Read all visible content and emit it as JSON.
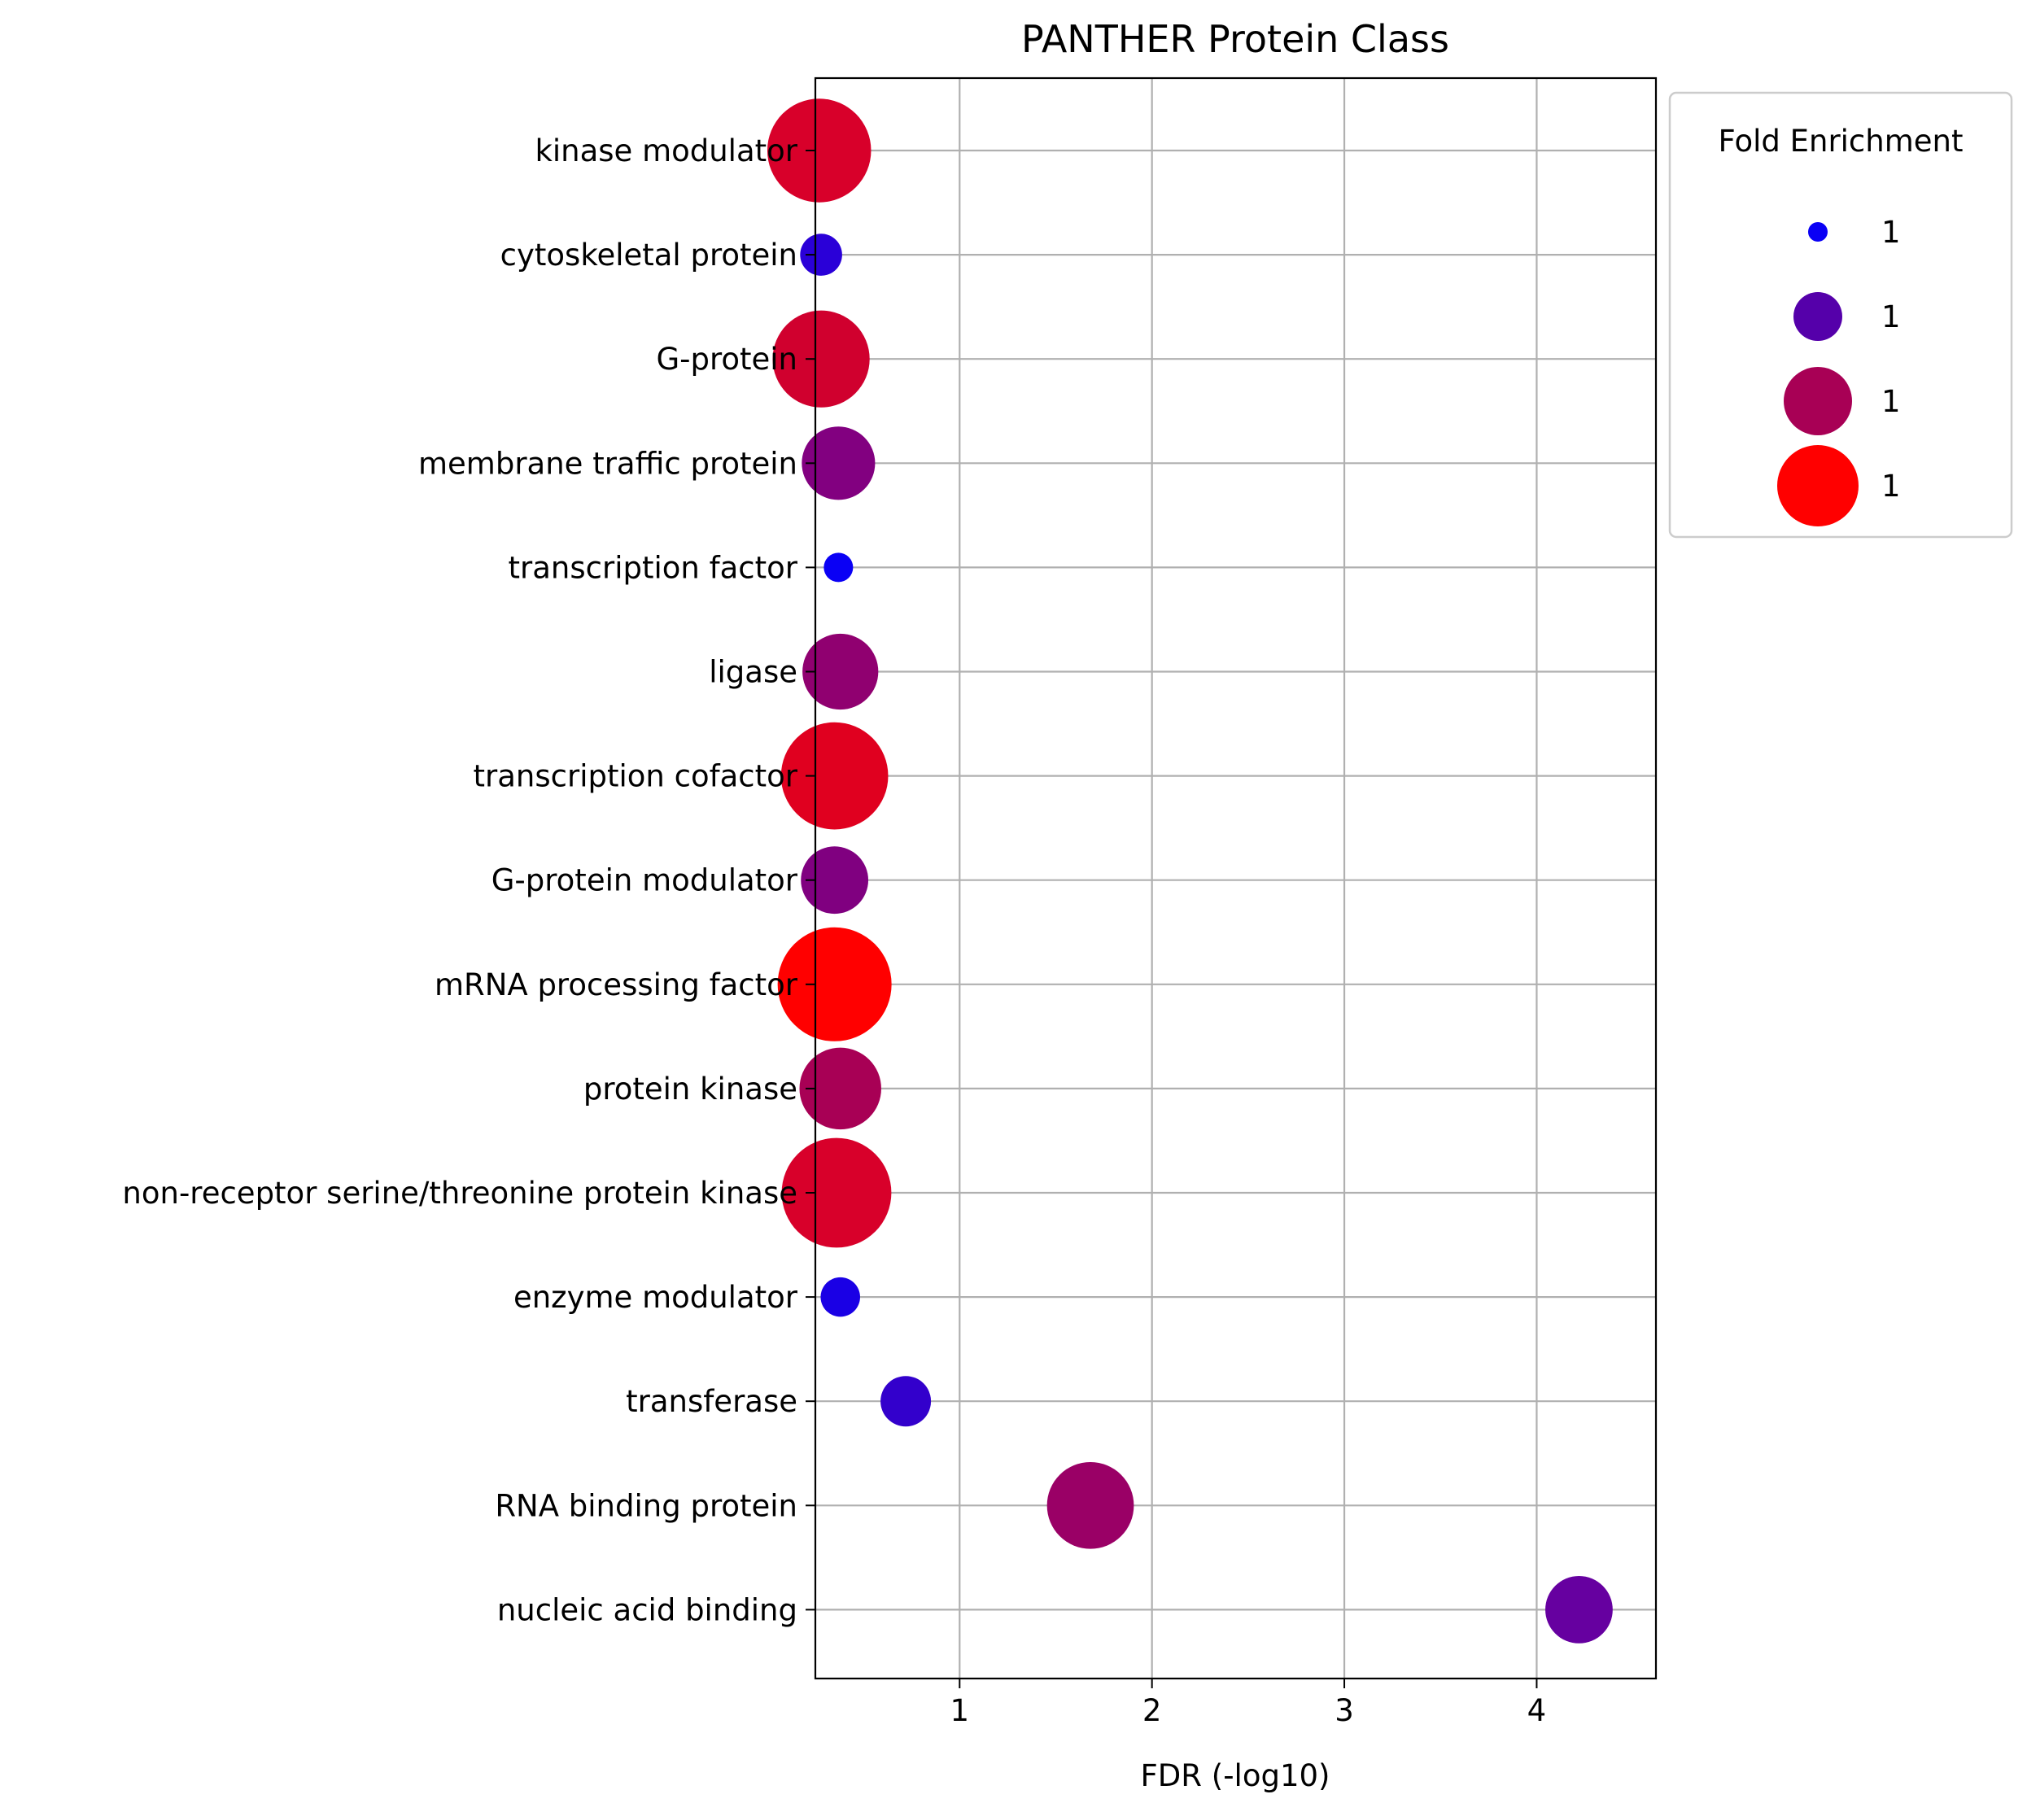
{
  "chart_data": {
    "type": "scatter",
    "title": "PANTHER Protein Class",
    "xlabel": "FDR (-log10)",
    "ylabel": "",
    "xlim": [
      0.25,
      4.62
    ],
    "xticks": [
      1,
      2,
      3,
      4
    ],
    "grid": true,
    "legend": {
      "title": "Fold Enrichment",
      "placement": "outside-top-right",
      "entries": [
        {
          "label": "1",
          "color": "#0a00f5",
          "size_rank": 1
        },
        {
          "label": "1",
          "color": "#5500aa",
          "size_rank": 2
        },
        {
          "label": "1",
          "color": "#a80055",
          "size_rank": 3
        },
        {
          "label": "1",
          "color": "#ff0000",
          "size_rank": 4
        }
      ]
    },
    "categories": [
      "kinase modulator",
      "cytoskeletal protein",
      "G-protein",
      "membrane traffic protein",
      "transcription factor",
      "ligase",
      "transcription cofactor",
      "G-protein modulator",
      "mRNA processing factor",
      "protein kinase",
      "non-receptor serine/threonine protein kinase",
      "enzyme modulator",
      "transferase",
      "RNA binding protein",
      "nucleic acid binding"
    ],
    "points": [
      {
        "category": "kinase modulator",
        "fdr_log10": 0.27,
        "fold_enrichment": 0.88,
        "color": "#d8002a"
      },
      {
        "category": "cytoskeletal protein",
        "fdr_log10": 0.28,
        "fold_enrichment": 0.15,
        "color": "#2a00d8"
      },
      {
        "category": "G-protein",
        "fdr_log10": 0.28,
        "fold_enrichment": 0.8,
        "color": "#d0002e"
      },
      {
        "category": "membrane traffic protein",
        "fdr_log10": 0.37,
        "fold_enrichment": 0.52,
        "color": "#820080"
      },
      {
        "category": "transcription factor",
        "fdr_log10": 0.37,
        "fold_enrichment": 0.0,
        "color": "#0a00f5"
      },
      {
        "category": "ligase",
        "fdr_log10": 0.38,
        "fold_enrichment": 0.55,
        "color": "#900070"
      },
      {
        "category": "transcription cofactor",
        "fdr_log10": 0.35,
        "fold_enrichment": 0.92,
        "color": "#e0001f"
      },
      {
        "category": "G-protein modulator",
        "fdr_log10": 0.35,
        "fold_enrichment": 0.45,
        "color": "#800080"
      },
      {
        "category": "mRNA processing factor",
        "fdr_log10": 0.35,
        "fold_enrichment": 1.0,
        "color": "#ff0000"
      },
      {
        "category": "protein kinase",
        "fdr_log10": 0.38,
        "fold_enrichment": 0.62,
        "color": "#a80055"
      },
      {
        "category": "non-receptor serine/threonine protein kinase",
        "fdr_log10": 0.36,
        "fold_enrichment": 0.95,
        "color": "#d8002a"
      },
      {
        "category": "enzyme modulator",
        "fdr_log10": 0.38,
        "fold_enrichment": 0.12,
        "color": "#1a00e5"
      },
      {
        "category": "transferase",
        "fdr_log10": 0.72,
        "fold_enrichment": 0.25,
        "color": "#3300cc"
      },
      {
        "category": "RNA binding protein",
        "fdr_log10": 1.68,
        "fold_enrichment": 0.68,
        "color": "#9a0066"
      },
      {
        "category": "nucleic acid binding",
        "fdr_log10": 4.22,
        "fold_enrichment": 0.45,
        "color": "#6600a0"
      }
    ]
  }
}
